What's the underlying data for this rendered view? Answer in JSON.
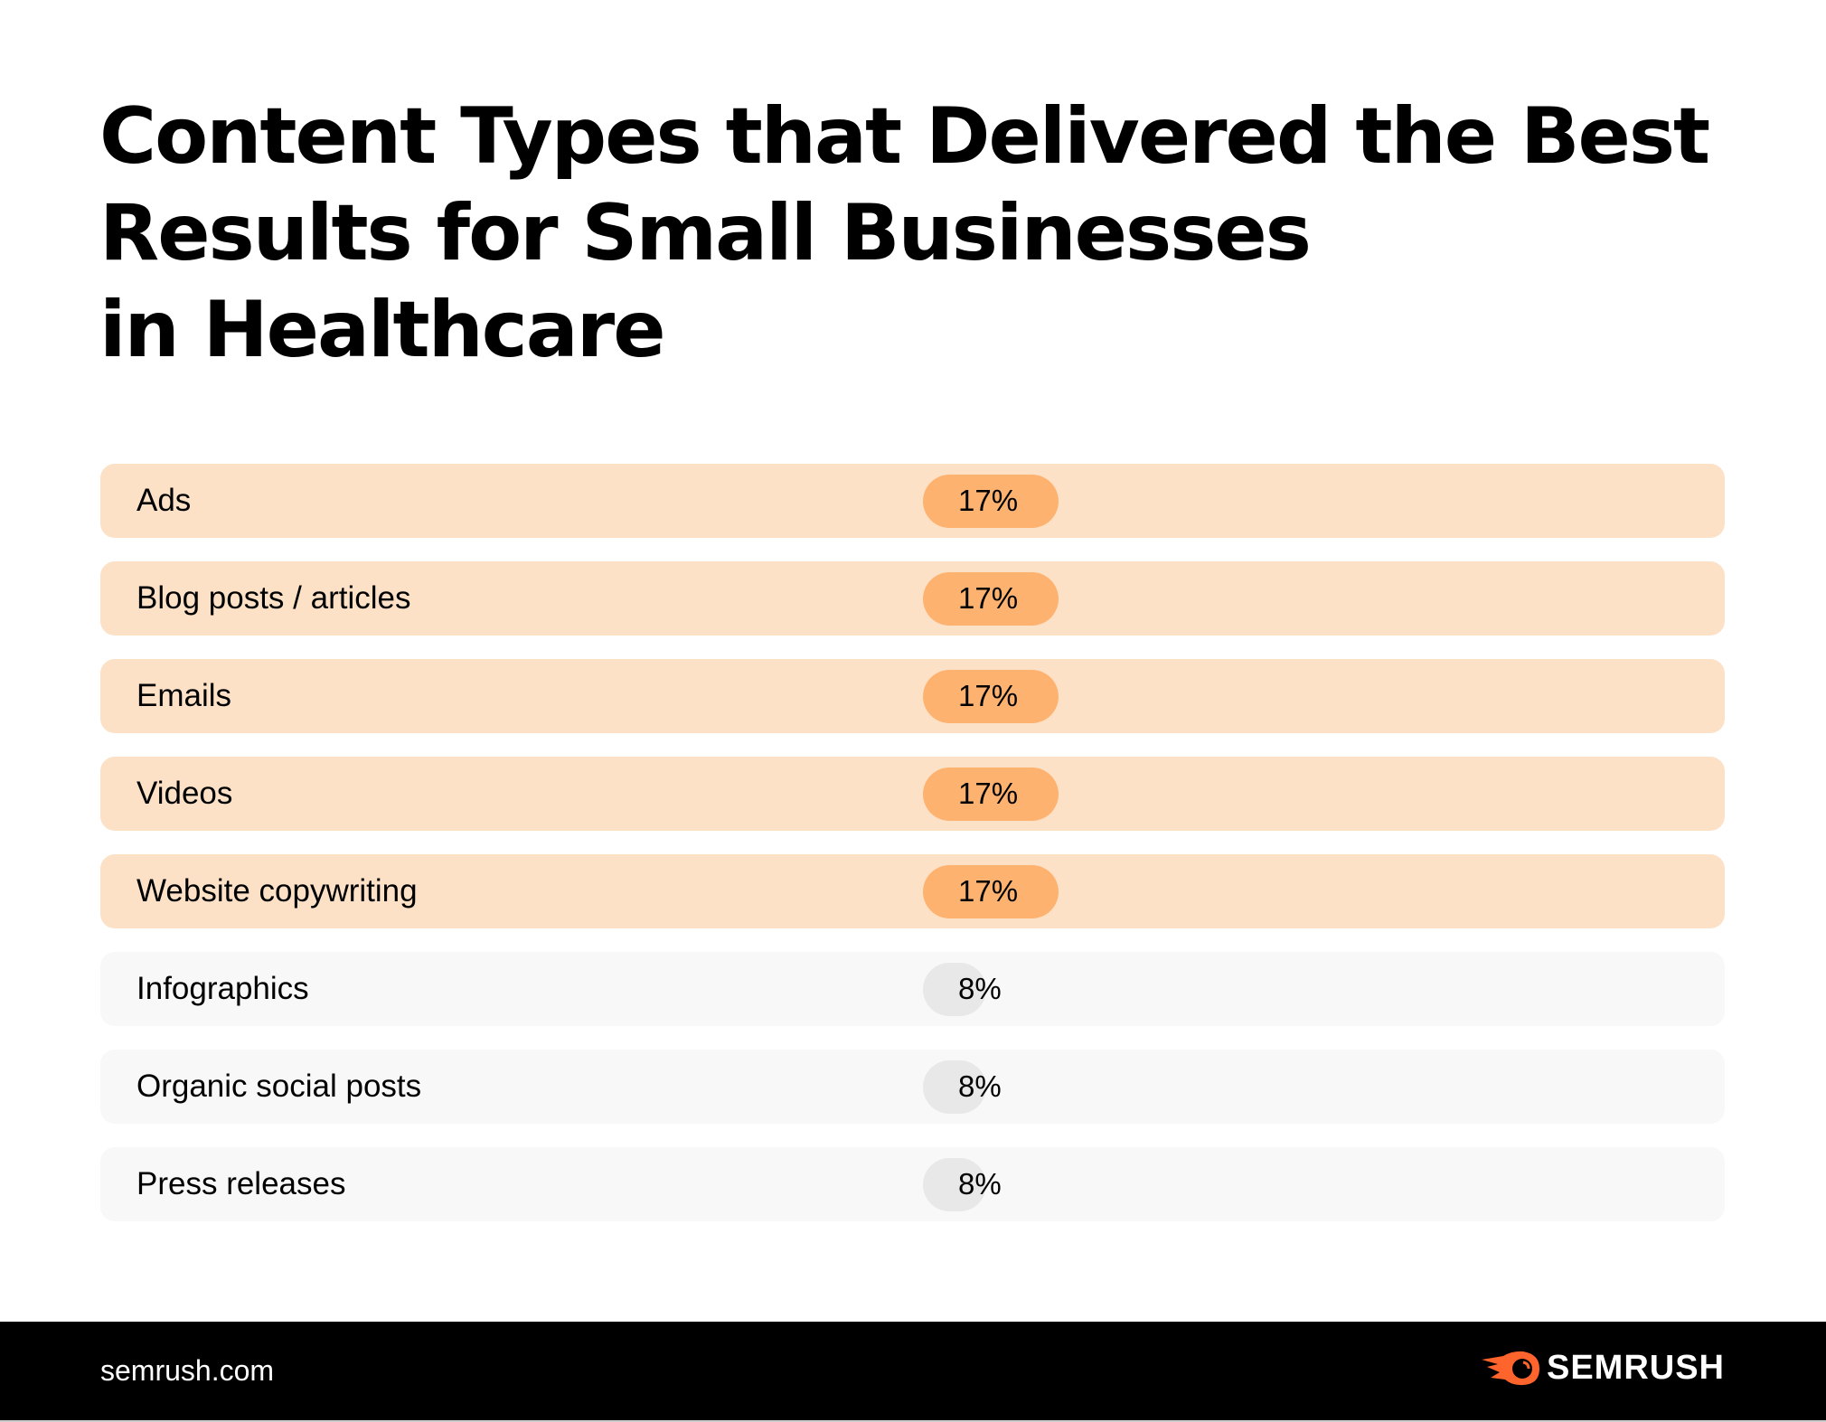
{
  "chart_data": {
    "type": "bar",
    "title": "Content Types that Delivered the Best Results for Small Businesses in Healthcare",
    "title_lines": [
      "Content Types that Delivered the Best",
      "Results for Small Businesses",
      "in Healthcare"
    ],
    "categories": [
      "Ads",
      "Blog posts / articles",
      "Emails",
      "Videos",
      "Website copywriting",
      "Infographics",
      "Organic social posts",
      "Press releases"
    ],
    "values": [
      17,
      17,
      17,
      17,
      17,
      8,
      8,
      8
    ],
    "value_labels": [
      "17%",
      "17%",
      "17%",
      "17%",
      "17%",
      "8%",
      "8%",
      "8%"
    ],
    "unit": "%",
    "highlight_color": "#feb26f",
    "highlight_row_color": "#fde1c7",
    "muted_color": "#e8e8e8",
    "muted_row_color": "#f8f8f8"
  },
  "footer": {
    "site": "semrush.com",
    "logo": "SEMRUSH",
    "logo_color": "#ff642d"
  }
}
